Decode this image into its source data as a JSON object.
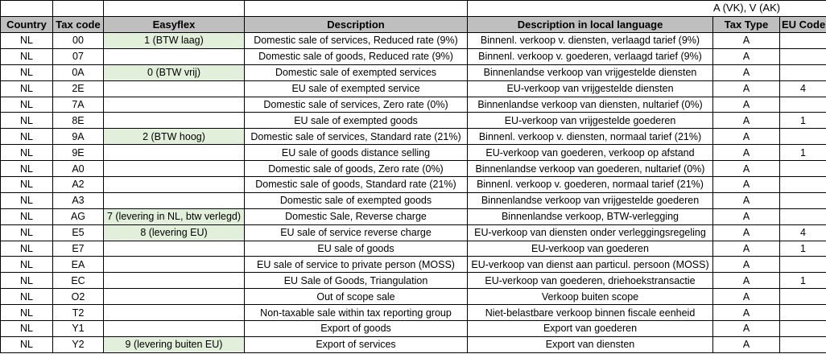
{
  "sheet": {
    "top_note": "A (VK), V (AK)",
    "columns": {
      "country": "Country",
      "tax_code": "Tax code",
      "easyflex": "Easyflex",
      "description": "Description",
      "local_description": "Description in local language",
      "tax_type": "Tax Type",
      "eu_code": "EU Code"
    },
    "colors": {
      "header_bg": "#bfbfbf",
      "easyflex_bg": "#e2efda",
      "border": "#000000"
    },
    "rows": [
      {
        "country": "NL",
        "tax_code": "00",
        "easyflex": "1 (BTW laag)",
        "easyflex_highlight": true,
        "description": "Domestic sale of services, Reduced rate (9%)",
        "local_description": "Binnenl. verkoop v. diensten, verlaagd tarief (9%)",
        "tax_type": "A",
        "eu_code": ""
      },
      {
        "country": "NL",
        "tax_code": "07",
        "easyflex": "",
        "easyflex_highlight": false,
        "description": "Domestic sale of goods, Reduced rate (9%)",
        "local_description": "Binnenl. verkoop v. goederen, verlaagd tarief (9%)",
        "tax_type": "A",
        "eu_code": ""
      },
      {
        "country": "NL",
        "tax_code": "0A",
        "easyflex": "0 (BTW vrij)",
        "easyflex_highlight": true,
        "description": "Domestic sale of exempted services",
        "local_description": "Binnenlandse verkoop van vrijgestelde diensten",
        "tax_type": "A",
        "eu_code": ""
      },
      {
        "country": "NL",
        "tax_code": "2E",
        "easyflex": "",
        "easyflex_highlight": false,
        "description": "EU sale of exempted service",
        "local_description": "EU-verkoop van vrijgestelde diensten",
        "tax_type": "A",
        "eu_code": "4"
      },
      {
        "country": "NL",
        "tax_code": "7A",
        "easyflex": "",
        "easyflex_highlight": false,
        "description": "Domestic sale of services, Zero rate (0%)",
        "local_description": "Binnenlandse verkoop van diensten, nultarief (0%)",
        "tax_type": "A",
        "eu_code": ""
      },
      {
        "country": "NL",
        "tax_code": "8E",
        "easyflex": "",
        "easyflex_highlight": false,
        "description": "EU sale of exempted goods",
        "local_description": "EU-verkoop van vrijgestelde goederen",
        "tax_type": "A",
        "eu_code": "1"
      },
      {
        "country": "NL",
        "tax_code": "9A",
        "easyflex": "2 (BTW hoog)",
        "easyflex_highlight": true,
        "description": "Domestic sale of services, Standard rate (21%)",
        "local_description": "Binnenl. verkoop v. diensten, normaal tarief (21%)",
        "tax_type": "A",
        "eu_code": ""
      },
      {
        "country": "NL",
        "tax_code": "9E",
        "easyflex": "",
        "easyflex_highlight": false,
        "description": "EU sale of goods distance selling",
        "local_description": "EU-verkoop van goederen, verkoop op afstand",
        "tax_type": "A",
        "eu_code": "1"
      },
      {
        "country": "NL",
        "tax_code": "A0",
        "easyflex": "",
        "easyflex_highlight": false,
        "description": "Domestic sale of goods, Zero rate (0%)",
        "local_description": "Binnenlandse verkoop van goederen, nultarief (0%)",
        "tax_type": "A",
        "eu_code": ""
      },
      {
        "country": "NL",
        "tax_code": "A2",
        "easyflex": "",
        "easyflex_highlight": false,
        "description": "Domestic sale of goods, Standard rate (21%)",
        "local_description": "Binnenl. verkoop v. goederen, normaal tarief (21%)",
        "tax_type": "A",
        "eu_code": ""
      },
      {
        "country": "NL",
        "tax_code": "A3",
        "easyflex": "",
        "easyflex_highlight": false,
        "description": "Domestic sale of exempted goods",
        "local_description": "Binnenlandse verkoop van vrijgestelde goederen",
        "tax_type": "A",
        "eu_code": ""
      },
      {
        "country": "NL",
        "tax_code": "AG",
        "easyflex": "7 (levering in NL, btw verlegd)",
        "easyflex_highlight": true,
        "description": "Domestic Sale, Reverse charge",
        "local_description": "Binnenlandse verkoop, BTW-verlegging",
        "tax_type": "A",
        "eu_code": ""
      },
      {
        "country": "NL",
        "tax_code": "E5",
        "easyflex": "8 (levering EU)",
        "easyflex_highlight": true,
        "description": "EU sale of service reverse charge",
        "local_description": "EU-verkoop van diensten onder verleggingsregeling",
        "tax_type": "A",
        "eu_code": "4"
      },
      {
        "country": "NL",
        "tax_code": "E7",
        "easyflex": "",
        "easyflex_highlight": false,
        "description": "EU sale of goods",
        "local_description": "EU-verkoop van goederen",
        "tax_type": "A",
        "eu_code": "1"
      },
      {
        "country": "NL",
        "tax_code": "EA",
        "easyflex": "",
        "easyflex_highlight": false,
        "description": "EU sale of service to private person (MOSS)",
        "local_description": "EU-verkoop van dienst aan particul. persoon (MOSS)",
        "tax_type": "A",
        "eu_code": ""
      },
      {
        "country": "NL",
        "tax_code": "EC",
        "easyflex": "",
        "easyflex_highlight": false,
        "description": "EU Sale of Goods, Triangulation",
        "local_description": "EU-verkoop van goederen, driehoekstransactie",
        "tax_type": "A",
        "eu_code": "1"
      },
      {
        "country": "NL",
        "tax_code": "O2",
        "easyflex": "",
        "easyflex_highlight": false,
        "description": "Out of scope sale",
        "local_description": "Verkoop buiten scope",
        "tax_type": "A",
        "eu_code": ""
      },
      {
        "country": "NL",
        "tax_code": "T2",
        "easyflex": "",
        "easyflex_highlight": false,
        "description": "Non-taxable sale within tax reporting group",
        "local_description": "Niet-belastbare verkoop binnen fiscale eenheid",
        "tax_type": "A",
        "eu_code": ""
      },
      {
        "country": "NL",
        "tax_code": "Y1",
        "easyflex": "",
        "easyflex_highlight": false,
        "description": "Export of goods",
        "local_description": "Export van goederen",
        "tax_type": "A",
        "eu_code": ""
      },
      {
        "country": "NL",
        "tax_code": "Y2",
        "easyflex": "9 (levering buiten EU)",
        "easyflex_highlight": true,
        "description": "Export of services",
        "local_description": "Export van diensten",
        "tax_type": "A",
        "eu_code": ""
      }
    ]
  }
}
